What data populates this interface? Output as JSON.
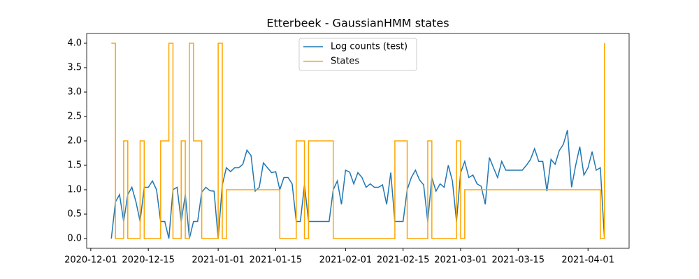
{
  "chart_data": {
    "type": "line",
    "title": "Etterbeek - GaussianHMM states",
    "x": [
      "2020-12-06",
      "2020-12-07",
      "2020-12-08",
      "2020-12-09",
      "2020-12-10",
      "2020-12-11",
      "2020-12-12",
      "2020-12-13",
      "2020-12-14",
      "2020-12-15",
      "2020-12-16",
      "2020-12-17",
      "2020-12-18",
      "2020-12-19",
      "2020-12-20",
      "2020-12-21",
      "2020-12-22",
      "2020-12-23",
      "2020-12-24",
      "2020-12-25",
      "2020-12-26",
      "2020-12-27",
      "2020-12-28",
      "2020-12-29",
      "2020-12-30",
      "2020-12-31",
      "2021-01-01",
      "2021-01-02",
      "2021-01-03",
      "2021-01-04",
      "2021-01-05",
      "2021-01-06",
      "2021-01-07",
      "2021-01-08",
      "2021-01-09",
      "2021-01-10",
      "2021-01-11",
      "2021-01-12",
      "2021-01-13",
      "2021-01-14",
      "2021-01-15",
      "2021-01-16",
      "2021-01-17",
      "2021-01-18",
      "2021-01-19",
      "2021-01-20",
      "2021-01-21",
      "2021-01-22",
      "2021-01-23",
      "2021-01-24",
      "2021-01-25",
      "2021-01-26",
      "2021-01-27",
      "2021-01-28",
      "2021-01-29",
      "2021-01-30",
      "2021-01-31",
      "2021-02-01",
      "2021-02-02",
      "2021-02-03",
      "2021-02-04",
      "2021-02-05",
      "2021-02-06",
      "2021-02-07",
      "2021-02-08",
      "2021-02-09",
      "2021-02-10",
      "2021-02-11",
      "2021-02-12",
      "2021-02-13",
      "2021-02-14",
      "2021-02-15",
      "2021-02-16",
      "2021-02-17",
      "2021-02-18",
      "2021-02-19",
      "2021-02-20",
      "2021-02-21",
      "2021-02-22",
      "2021-02-23",
      "2021-02-24",
      "2021-02-25",
      "2021-02-26",
      "2021-02-27",
      "2021-02-28",
      "2021-03-01",
      "2021-03-02",
      "2021-03-03",
      "2021-03-04",
      "2021-03-05",
      "2021-03-06",
      "2021-03-07",
      "2021-03-08",
      "2021-03-09",
      "2021-03-10",
      "2021-03-11",
      "2021-03-12",
      "2021-03-13",
      "2021-03-14",
      "2021-03-15",
      "2021-03-16",
      "2021-03-17",
      "2021-03-18",
      "2021-03-19",
      "2021-03-20",
      "2021-03-21",
      "2021-03-22",
      "2021-03-23",
      "2021-03-24",
      "2021-03-25",
      "2021-03-26",
      "2021-03-27",
      "2021-03-28",
      "2021-03-29",
      "2021-03-30",
      "2021-03-31",
      "2021-04-01",
      "2021-04-02",
      "2021-04-03",
      "2021-04-04",
      "2021-04-05"
    ],
    "series": [
      {
        "name": "Log counts (test)",
        "color": "#1f77b4",
        "values": [
          0,
          0.75,
          0.9,
          0.35,
          0.9,
          1.05,
          0.75,
          0.35,
          1.05,
          1.05,
          1.18,
          1.0,
          0.35,
          0.35,
          0,
          1.0,
          1.05,
          0.35,
          0.9,
          0,
          0.35,
          0.35,
          0.95,
          1.05,
          0.98,
          0.97,
          0,
          1.1,
          1.45,
          1.37,
          1.45,
          1.45,
          1.52,
          1.81,
          1.7,
          0.97,
          1.05,
          1.55,
          1.45,
          1.35,
          1.37,
          1.0,
          1.25,
          1.25,
          1.12,
          0.35,
          0.35,
          1.1,
          0.35,
          0.35,
          0.35,
          0.35,
          0.35,
          0.35,
          1.0,
          1.18,
          0.7,
          1.4,
          1.36,
          1.12,
          1.35,
          1.25,
          1.05,
          1.12,
          1.05,
          1.05,
          1.1,
          0.7,
          1.35,
          0.35,
          0.35,
          0.35,
          1.0,
          1.25,
          1.4,
          1.2,
          1.1,
          0.35,
          1.25,
          0.97,
          1.12,
          1.05,
          1.5,
          1.18,
          0.35,
          1.35,
          1.58,
          1.25,
          1.3,
          1.12,
          1.07,
          0.7,
          1.66,
          1.45,
          1.25,
          1.58,
          1.4,
          1.4,
          1.4,
          1.4,
          1.4,
          1.5,
          1.62,
          1.84,
          1.58,
          1.58,
          0.97,
          1.62,
          1.52,
          1.8,
          1.93,
          2.22,
          1.05,
          1.5,
          1.88,
          1.3,
          1.45,
          1.78,
          1.4,
          1.45,
          0
        ]
      },
      {
        "name": "States",
        "color": "#ffa500",
        "drawstyle": "steps-post",
        "values": [
          4,
          0,
          0,
          2,
          0,
          0,
          0,
          2,
          0,
          0,
          0,
          0,
          2,
          2,
          4,
          0,
          0,
          2,
          0,
          4,
          2,
          2,
          0,
          0,
          0,
          0,
          4,
          0,
          1,
          1,
          1,
          1,
          1,
          1,
          1,
          1,
          1,
          1,
          1,
          1,
          1,
          0,
          0,
          0,
          0,
          2,
          2,
          0,
          2,
          2,
          2,
          2,
          2,
          2,
          0,
          0,
          0,
          0,
          0,
          0,
          0,
          0,
          0,
          0,
          0,
          0,
          0,
          0,
          0,
          2,
          2,
          2,
          0,
          0,
          0,
          0,
          0,
          2,
          0,
          0,
          0,
          0,
          0,
          0,
          2,
          0,
          1,
          1,
          1,
          1,
          1,
          1,
          1,
          1,
          1,
          1,
          1,
          1,
          1,
          1,
          1,
          1,
          1,
          1,
          1,
          1,
          1,
          1,
          1,
          1,
          1,
          1,
          1,
          1,
          1,
          1,
          1,
          1,
          1,
          0,
          4
        ]
      }
    ],
    "xlim": [
      "2020-11-30",
      "2021-04-11"
    ],
    "xticks": [
      "2020-12-01",
      "2020-12-15",
      "2021-01-01",
      "2021-01-15",
      "2021-02-01",
      "2021-02-15",
      "2021-03-01",
      "2021-03-15",
      "2021-04-01"
    ],
    "ylim": [
      -0.2,
      4.2
    ],
    "yticks": [
      {
        "value": 0,
        "label": "0.0"
      },
      {
        "value": 0.5,
        "label": "0.5"
      },
      {
        "value": 1,
        "label": "1.0"
      },
      {
        "value": 1.5,
        "label": "1.5"
      },
      {
        "value": 2,
        "label": "2.0"
      },
      {
        "value": 2.5,
        "label": "2.5"
      },
      {
        "value": 3,
        "label": "3.0"
      },
      {
        "value": 3.5,
        "label": "3.5"
      },
      {
        "value": 4,
        "label": "4.0"
      }
    ],
    "grid": false,
    "legend": "upper center"
  }
}
